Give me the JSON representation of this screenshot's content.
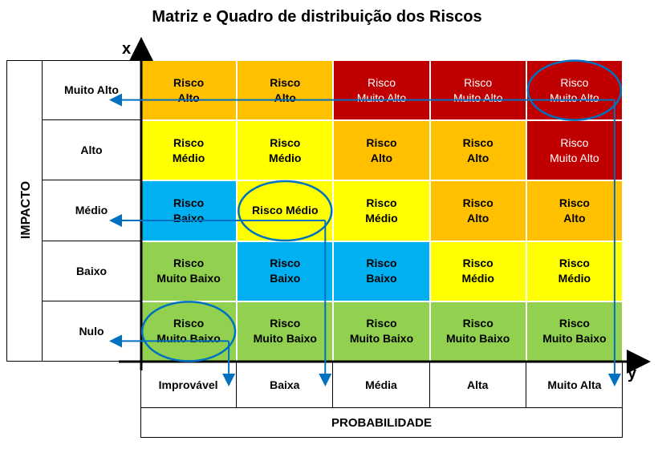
{
  "title": "Matriz e Quadro de distribuição dos Riscos",
  "axis": {
    "x": "x",
    "y": "y",
    "vertical_title": "IMPACTO",
    "horizontal_title": "PROBABILIDADE"
  },
  "rows": [
    "Muito Alto",
    "Alto",
    "Médio",
    "Baixo",
    "Nulo"
  ],
  "columns": [
    "Improvável",
    "Baixa",
    "Média",
    "Alta",
    "Muito Alta"
  ],
  "colors": {
    "muito_alto": "#c00000",
    "alto": "#ffc000",
    "medio": "#ffff00",
    "baixo": "#00b0f0",
    "muito_baixo": "#92d050",
    "arrow": "#0070c0"
  },
  "matrix": [
    [
      {
        "line1": "Risco",
        "line2": "Alto",
        "level": "alto"
      },
      {
        "line1": "Risco",
        "line2": "Alto",
        "level": "alto"
      },
      {
        "line1": "Risco",
        "line2": "Muito Alto",
        "level": "muito_alto"
      },
      {
        "line1": "Risco",
        "line2": "Muito Alto",
        "level": "muito_alto"
      },
      {
        "line1": "Risco",
        "line2": "Muito Alto",
        "level": "muito_alto"
      }
    ],
    [
      {
        "line1": "Risco",
        "line2": "Médio",
        "level": "medio"
      },
      {
        "line1": "Risco",
        "line2": "Médio",
        "level": "medio"
      },
      {
        "line1": "Risco",
        "line2": "Alto",
        "level": "alto"
      },
      {
        "line1": "Risco",
        "line2": "Alto",
        "level": "alto"
      },
      {
        "line1": "Risco",
        "line2": "Muito Alto",
        "level": "muito_alto"
      }
    ],
    [
      {
        "line1": "Risco",
        "line2": "Baixo",
        "level": "baixo"
      },
      {
        "line1": "Risco Médio",
        "line2": "",
        "level": "medio"
      },
      {
        "line1": "Risco",
        "line2": "Médio",
        "level": "medio"
      },
      {
        "line1": "Risco",
        "line2": "Alto",
        "level": "alto"
      },
      {
        "line1": "Risco",
        "line2": "Alto",
        "level": "alto"
      }
    ],
    [
      {
        "line1": "Risco",
        "line2": "Muito Baixo",
        "level": "muito_baixo"
      },
      {
        "line1": "Risco",
        "line2": "Baixo",
        "level": "baixo"
      },
      {
        "line1": "Risco",
        "line2": "Baixo",
        "level": "baixo"
      },
      {
        "line1": "Risco",
        "line2": "Médio",
        "level": "medio"
      },
      {
        "line1": "Risco",
        "line2": "Médio",
        "level": "medio"
      }
    ],
    [
      {
        "line1": "Risco",
        "line2": "Muito Baixo",
        "level": "muito_baixo"
      },
      {
        "line1": "Risco",
        "line2": "Muito Baixo",
        "level": "muito_baixo"
      },
      {
        "line1": "Risco",
        "line2": "Muito Baixo",
        "level": "muito_baixo"
      },
      {
        "line1": "Risco",
        "line2": "Muito Baixo",
        "level": "muito_baixo"
      },
      {
        "line1": "Risco",
        "line2": "Muito Baixo",
        "level": "muito_baixo"
      }
    ]
  ],
  "highlights": [
    {
      "row": 0,
      "col": 4
    },
    {
      "row": 2,
      "col": 1
    },
    {
      "row": 4,
      "col": 0
    }
  ]
}
